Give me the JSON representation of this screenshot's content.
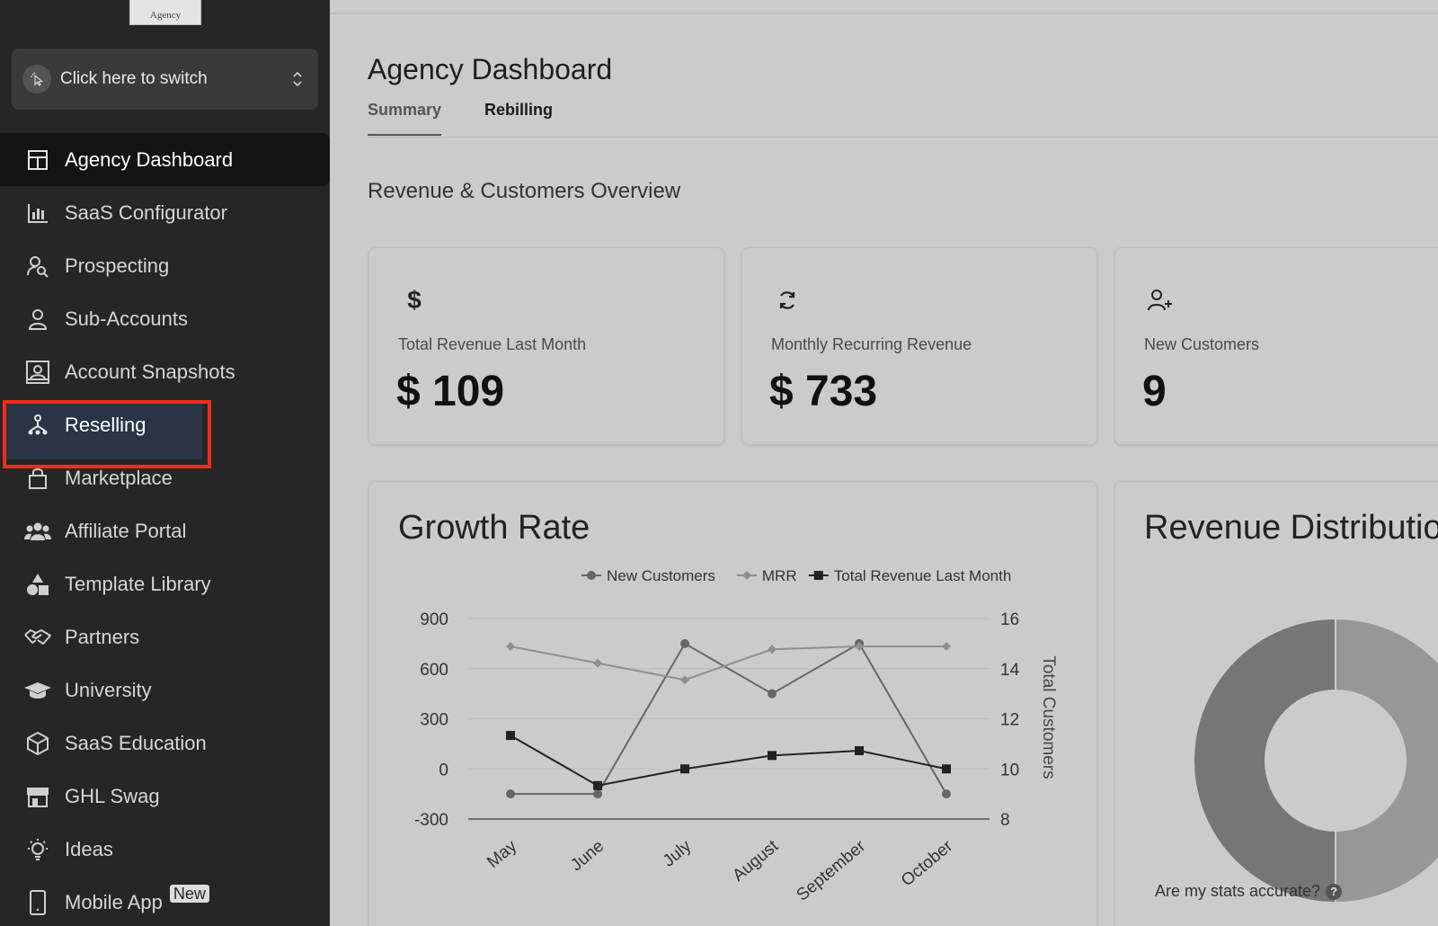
{
  "logo": {
    "text": "Agency"
  },
  "switcher": {
    "label": "Click here to switch"
  },
  "sidebar": {
    "items": [
      {
        "label": "Agency Dashboard",
        "icon": "dashboard-icon"
      },
      {
        "label": "SaaS Configurator",
        "icon": "bar-chart-icon"
      },
      {
        "label": "Prospecting",
        "icon": "user-search-icon"
      },
      {
        "label": "Sub-Accounts",
        "icon": "user-icon"
      },
      {
        "label": "Account Snapshots",
        "icon": "snapshot-icon"
      },
      {
        "label": "Reselling",
        "icon": "reselling-icon"
      },
      {
        "label": "Marketplace",
        "icon": "shopping-bag-icon"
      },
      {
        "label": "Affiliate Portal",
        "icon": "users-icon"
      },
      {
        "label": "Template Library",
        "icon": "shapes-icon"
      },
      {
        "label": "Partners",
        "icon": "handshake-icon"
      },
      {
        "label": "University",
        "icon": "graduation-cap-icon"
      },
      {
        "label": "SaaS Education",
        "icon": "box-icon"
      },
      {
        "label": "GHL Swag",
        "icon": "store-icon"
      },
      {
        "label": "Ideas",
        "icon": "lightbulb-icon"
      },
      {
        "label": "Mobile App",
        "icon": "mobile-icon",
        "badge": "New"
      }
    ]
  },
  "header": {
    "title": "Agency Dashboard"
  },
  "tabs": [
    {
      "label": "Summary"
    },
    {
      "label": "Rebilling"
    }
  ],
  "overview": {
    "title": "Revenue & Customers Overview"
  },
  "stats": [
    {
      "label": "Total Revenue Last Month",
      "value": "$ 109",
      "icon": "dollar-icon"
    },
    {
      "label": "Monthly Recurring Revenue",
      "value": "$ 733",
      "icon": "refresh-icon"
    },
    {
      "label": "New Customers",
      "value": "9",
      "icon": "user-plus-icon"
    }
  ],
  "growth": {
    "title": "Growth Rate"
  },
  "distribution": {
    "title": "Revenue Distribution",
    "footer": "Are my stats accurate?",
    "help": "?"
  },
  "chart_data": [
    {
      "type": "line",
      "title": "Growth Rate",
      "categories": [
        "May",
        "June",
        "July",
        "August",
        "September",
        "October"
      ],
      "y_left": {
        "ticks": [
          "900",
          "600",
          "300",
          "0",
          "-300"
        ],
        "range": [
          -300,
          900
        ]
      },
      "y_right": {
        "label": "Total Customers",
        "ticks": [
          "16",
          "14",
          "12",
          "10",
          "8"
        ],
        "range": [
          8,
          16
        ]
      },
      "legend_position": "top",
      "series": [
        {
          "name": "New Customers",
          "axis": "right",
          "marker": "circle",
          "color": "#666666",
          "values": [
            9,
            9,
            15,
            13,
            15,
            9
          ]
        },
        {
          "name": "MRR",
          "axis": "left",
          "marker": "diamond",
          "color": "#8f8f8f",
          "values": [
            733,
            633,
            533,
            716,
            733,
            733
          ]
        },
        {
          "name": "Total Revenue Last Month",
          "axis": "left",
          "marker": "square",
          "color": "#222222",
          "values": [
            200,
            -100,
            0,
            80,
            109,
            0
          ]
        }
      ]
    },
    {
      "type": "pie",
      "title": "Revenue Distribution",
      "donut": true,
      "slices": [
        {
          "value": 50,
          "color": "#979797"
        },
        {
          "value": 50,
          "color": "#767676"
        }
      ]
    }
  ]
}
